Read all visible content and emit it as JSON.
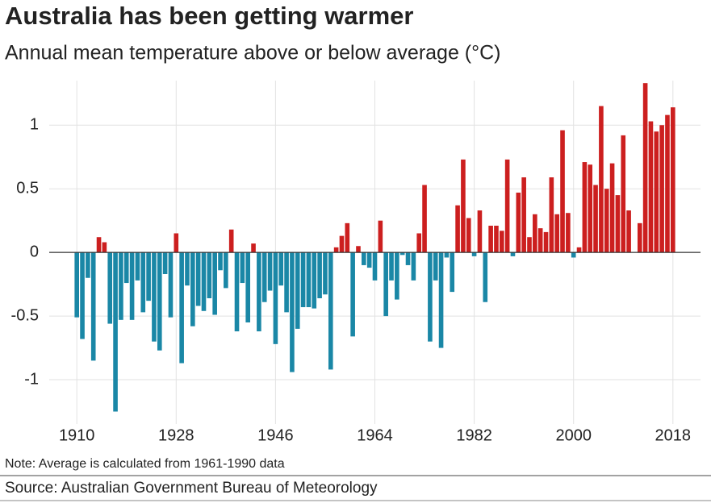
{
  "chart_data": {
    "type": "bar",
    "title": "Australia has been getting warmer",
    "subtitle": "Annual mean temperature above or below average (°C)",
    "note": "Note: Average is calculated from 1961-1990 data",
    "source": "Source: Australian Government Bureau of Meteorology",
    "x": [
      1910,
      1911,
      1912,
      1913,
      1914,
      1915,
      1916,
      1917,
      1918,
      1919,
      1920,
      1921,
      1922,
      1923,
      1924,
      1925,
      1926,
      1927,
      1928,
      1929,
      1930,
      1931,
      1932,
      1933,
      1934,
      1935,
      1936,
      1937,
      1938,
      1939,
      1940,
      1941,
      1942,
      1943,
      1944,
      1945,
      1946,
      1947,
      1948,
      1949,
      1950,
      1951,
      1952,
      1953,
      1954,
      1955,
      1956,
      1957,
      1958,
      1959,
      1960,
      1961,
      1962,
      1963,
      1964,
      1965,
      1966,
      1967,
      1968,
      1969,
      1970,
      1971,
      1972,
      1973,
      1974,
      1975,
      1976,
      1977,
      1978,
      1979,
      1980,
      1981,
      1982,
      1983,
      1984,
      1985,
      1986,
      1987,
      1988,
      1989,
      1990,
      1991,
      1992,
      1993,
      1994,
      1995,
      1996,
      1997,
      1998,
      1999,
      2000,
      2001,
      2002,
      2003,
      2004,
      2005,
      2006,
      2007,
      2008,
      2009,
      2010,
      2011,
      2012,
      2013,
      2014,
      2015,
      2016,
      2017,
      2018
    ],
    "values": [
      -0.51,
      -0.68,
      -0.2,
      -0.85,
      0.12,
      0.08,
      -0.56,
      -1.25,
      -0.53,
      -0.24,
      -0.53,
      -0.22,
      -0.47,
      -0.38,
      -0.7,
      -0.77,
      -0.17,
      -0.51,
      0.15,
      -0.87,
      -0.26,
      -0.58,
      -0.42,
      -0.46,
      -0.36,
      -0.49,
      -0.14,
      -0.28,
      0.18,
      -0.62,
      -0.24,
      -0.55,
      0.07,
      -0.62,
      -0.39,
      -0.3,
      -0.72,
      -0.26,
      -0.47,
      -0.94,
      -0.6,
      -0.43,
      -0.43,
      -0.44,
      -0.36,
      -0.33,
      -0.92,
      0.04,
      0.13,
      0.23,
      -0.66,
      0.05,
      -0.1,
      -0.12,
      -0.22,
      0.25,
      -0.5,
      -0.22,
      -0.37,
      -0.02,
      -0.1,
      -0.22,
      0.15,
      0.53,
      -0.7,
      -0.22,
      -0.75,
      -0.04,
      -0.31,
      0.37,
      0.73,
      0.27,
      -0.03,
      0.33,
      -0.39,
      0.21,
      0.21,
      0.17,
      0.73,
      -0.03,
      0.47,
      0.59,
      0.12,
      0.3,
      0.19,
      0.16,
      0.59,
      0.3,
      0.96,
      0.31,
      -0.04,
      0.04,
      0.71,
      0.69,
      0.53,
      1.15,
      0.5,
      0.7,
      0.45,
      0.92,
      0.33,
      0.0,
      0.23,
      1.33,
      1.03,
      0.95,
      1.0,
      1.08,
      1.14
    ],
    "positive_color": "#cc1f1f",
    "negative_color": "#1a87a6",
    "xlim": [
      1905,
      2023
    ],
    "xticks": [
      1910,
      1928,
      1946,
      1964,
      1982,
      2000,
      2018
    ],
    "ylim": [
      -1.31,
      1.35
    ],
    "yticks": [
      -1,
      -0.5,
      0,
      0.5,
      1
    ],
    "grid": true
  }
}
